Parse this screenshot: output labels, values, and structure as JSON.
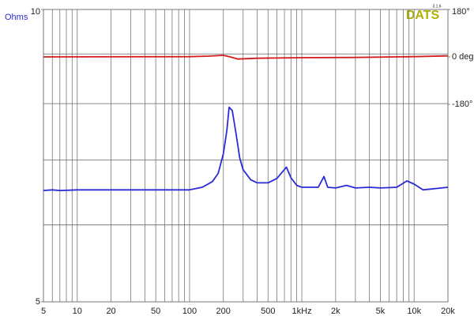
{
  "chart_data": {
    "type": "line",
    "ylabel": "Ohms",
    "logo": "DATS",
    "logo_version": "3.1.6",
    "logo_color": "#b0b000",
    "xlog": true,
    "ylog": true,
    "grid": true,
    "xlim": [
      5,
      20000
    ],
    "xticks": [
      5,
      10,
      20,
      50,
      100,
      200,
      500,
      {
        "value": 1000,
        "label": "1kHz"
      },
      {
        "value": 2000,
        "label": "2k"
      },
      {
        "value": 5000,
        "label": "5k"
      },
      {
        "value": 10000,
        "label": "10k"
      },
      {
        "value": 20000,
        "label": "20k"
      }
    ],
    "xminor": [
      6,
      7,
      8,
      9,
      30,
      40,
      60,
      70,
      80,
      90,
      300,
      400,
      600,
      700,
      800,
      900,
      3000,
      4000,
      6000,
      7000,
      8000,
      9000
    ],
    "ylim": [
      5,
      10
    ],
    "yticks": [
      5,
      10
    ],
    "yminor": [
      6,
      7,
      8,
      9
    ],
    "y2lim": [
      -930,
      180
    ],
    "y2ticks": [
      {
        "value": 180,
        "label": "180°"
      },
      {
        "value": 0,
        "label": "0 deg"
      },
      {
        "value": -180,
        "label": "-180°"
      }
    ],
    "series": [
      {
        "color": "#2a2ad8",
        "x": [
          5,
          6,
          7,
          10,
          20,
          50,
          100,
          130,
          160,
          180,
          200,
          215,
          225,
          240,
          260,
          280,
          300,
          350,
          400,
          500,
          600,
          730,
          800,
          900,
          1000,
          1200,
          1400,
          1575,
          1700,
          2000,
          2500,
          3000,
          4000,
          5000,
          7000,
          8630,
          10000,
          12000,
          20000
        ],
        "values": [
          6.51,
          6.52,
          6.51,
          6.52,
          6.52,
          6.52,
          6.52,
          6.56,
          6.65,
          6.78,
          7.1,
          7.51,
          7.93,
          7.87,
          7.44,
          7.03,
          6.84,
          6.68,
          6.63,
          6.63,
          6.7,
          6.88,
          6.71,
          6.59,
          6.56,
          6.56,
          6.56,
          6.73,
          6.56,
          6.55,
          6.59,
          6.55,
          6.56,
          6.55,
          6.56,
          6.66,
          6.61,
          6.52,
          6.56
        ]
      },
      {
        "color": "#d41c1c",
        "axis": "y2",
        "x": [
          5,
          100,
          150,
          200,
          230,
          270,
          400,
          1000,
          3000,
          10000,
          20000
        ],
        "values": [
          0,
          1,
          3,
          6,
          0,
          -8,
          -5,
          -3,
          -2,
          1,
          4
        ]
      }
    ]
  }
}
